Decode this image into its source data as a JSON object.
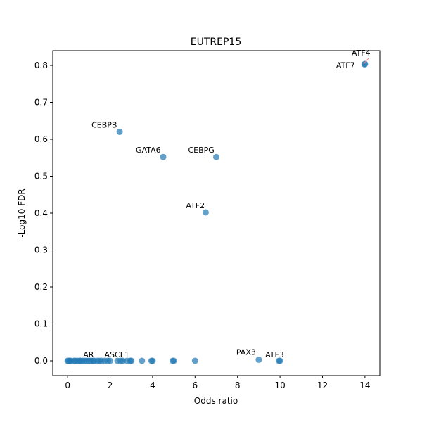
{
  "chart_data": {
    "type": "scatter",
    "title": "EUTREP15",
    "xlabel": "Odds ratio",
    "ylabel": "-Log10 FDR",
    "xlim": [
      -0.7,
      14.7
    ],
    "ylim": [
      -0.04,
      0.84
    ],
    "xticks": [
      "0",
      "2",
      "4",
      "6",
      "8",
      "10",
      "12",
      "14"
    ],
    "yticks": [
      "0.0",
      "0.1",
      "0.2",
      "0.3",
      "0.4",
      "0.5",
      "0.6",
      "0.7",
      "0.8"
    ],
    "grid": false,
    "marker_color": "#1f77b4",
    "marker_alpha": 0.7,
    "points": [
      {
        "x": 0,
        "y": 0
      },
      {
        "x": 0.05,
        "y": 0
      },
      {
        "x": 0.1,
        "y": 0
      },
      {
        "x": 0.15,
        "y": 0
      },
      {
        "x": 0.3,
        "y": 0
      },
      {
        "x": 0.35,
        "y": 0
      },
      {
        "x": 0.45,
        "y": 0
      },
      {
        "x": 0.55,
        "y": 0
      },
      {
        "x": 0.6,
        "y": 0
      },
      {
        "x": 0.7,
        "y": 0
      },
      {
        "x": 0.8,
        "y": 0
      },
      {
        "x": 0.9,
        "y": 0
      },
      {
        "x": 1.0,
        "y": 0
      },
      {
        "x": 1.1,
        "y": 0
      },
      {
        "x": 1.2,
        "y": 0
      },
      {
        "x": 1.25,
        "y": 0
      },
      {
        "x": 1.4,
        "y": 0
      },
      {
        "x": 1.5,
        "y": 0
      },
      {
        "x": 1.6,
        "y": 0
      },
      {
        "x": 1.75,
        "y": 0
      },
      {
        "x": 1.9,
        "y": 0
      },
      {
        "x": 2.0,
        "y": 0
      },
      {
        "x": 2.35,
        "y": 0
      },
      {
        "x": 2.5,
        "y": 0
      },
      {
        "x": 2.6,
        "y": 0
      },
      {
        "x": 2.8,
        "y": 0
      },
      {
        "x": 2.95,
        "y": 0
      },
      {
        "x": 3.0,
        "y": 0
      },
      {
        "x": 3.5,
        "y": 0
      },
      {
        "x": 3.95,
        "y": 0
      },
      {
        "x": 4.0,
        "y": 0
      },
      {
        "x": 4.95,
        "y": 0
      },
      {
        "x": 5.0,
        "y": 0
      },
      {
        "x": 6.0,
        "y": 0
      },
      {
        "x": 9.95,
        "y": 0
      },
      {
        "x": 10.0,
        "y": 0
      },
      {
        "x": 9.0,
        "y": 0.003
      },
      {
        "x": 2.45,
        "y": 0.62
      },
      {
        "x": 4.5,
        "y": 0.552
      },
      {
        "x": 7.0,
        "y": 0.552
      },
      {
        "x": 6.5,
        "y": 0.402
      },
      {
        "x": 14.0,
        "y": 0.804
      },
      {
        "x": 13.98,
        "y": 0.803
      }
    ],
    "annotations": [
      {
        "text": "ATF4",
        "x": 14.0,
        "y": 0.804,
        "dx": -19,
        "dy": -12,
        "connector": true
      },
      {
        "text": "ATF7",
        "x": 14.0,
        "y": 0.803,
        "dx": -41,
        "dy": 5,
        "connector": false
      },
      {
        "text": "CEBPB",
        "x": 2.45,
        "y": 0.62,
        "dx": -40,
        "dy": -6,
        "connector": false
      },
      {
        "text": "GATA6",
        "x": 4.5,
        "y": 0.552,
        "dx": -39,
        "dy": -6,
        "connector": false
      },
      {
        "text": "CEBPG",
        "x": 7.0,
        "y": 0.552,
        "dx": -40,
        "dy": -6,
        "connector": false
      },
      {
        "text": "ATF2",
        "x": 6.5,
        "y": 0.402,
        "dx": -28,
        "dy": -6,
        "connector": false
      },
      {
        "text": "AR",
        "x": 0.6,
        "y": 0,
        "dx": 4,
        "dy": -5,
        "connector": false
      },
      {
        "text": "ASCL1",
        "x": 2.0,
        "y": 0,
        "dx": -8,
        "dy": -5,
        "connector": false
      },
      {
        "text": "PAX3",
        "x": 9.0,
        "y": 0.003,
        "dx": -32,
        "dy": -7,
        "connector": false
      },
      {
        "text": "ATF3",
        "x": 10.0,
        "y": 0,
        "dx": -21,
        "dy": -5,
        "connector": false
      }
    ],
    "annotation_connector_color": "#ff7f7f"
  }
}
